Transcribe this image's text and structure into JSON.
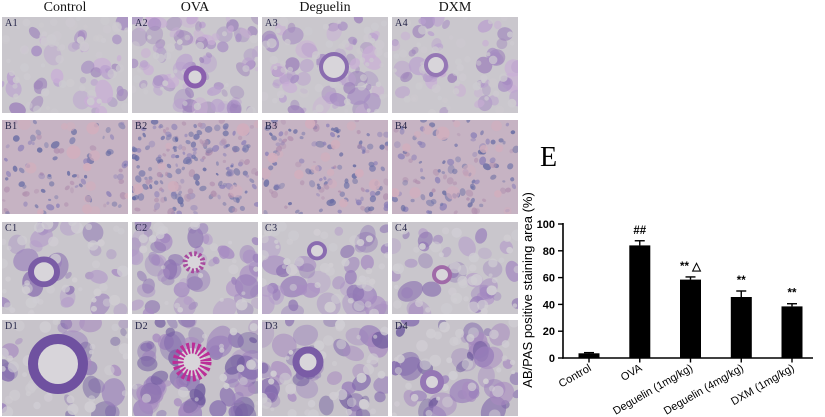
{
  "figure": {
    "column_headers": [
      "Control",
      "OVA",
      "Deguelin",
      "DXM"
    ],
    "panel_labels": [
      [
        "A1",
        "A2",
        "A3",
        "A4"
      ],
      [
        "B1",
        "B2",
        "B3",
        "B4"
      ],
      [
        "C1",
        "C2",
        "C3",
        "C4"
      ],
      [
        "D1",
        "D2",
        "D3",
        "D4"
      ]
    ],
    "chart_panel_label": "E"
  },
  "chart_data": {
    "type": "bar",
    "title": "",
    "ylabel": "AB/PAS positive staining area (%)",
    "xlabel": "",
    "ylim": [
      0,
      100
    ],
    "yticks": [
      0,
      20,
      40,
      60,
      80,
      100
    ],
    "categories": [
      "Control",
      "OVA",
      "Deguelin (1mg/kg)",
      "Deguelin (4mg/kg)",
      "DXM (1mg/kg)"
    ],
    "values": [
      3.5,
      84,
      58.5,
      45.5,
      38.5
    ],
    "errors": [
      0.5,
      3.5,
      2,
      4.5,
      2
    ],
    "annotations": [
      "",
      "##",
      "** △",
      "**",
      "**"
    ],
    "bar_color": "#000000",
    "axis_color": "#000000",
    "grid": false,
    "legend": null
  },
  "colors": {
    "stain_light_bg": "#cac7cd",
    "stain_purple": "#8d73b2",
    "stain_blue": "#6d71a8",
    "stain_pink": "#cba3b4",
    "stain_magenta": "#bb2f97"
  }
}
